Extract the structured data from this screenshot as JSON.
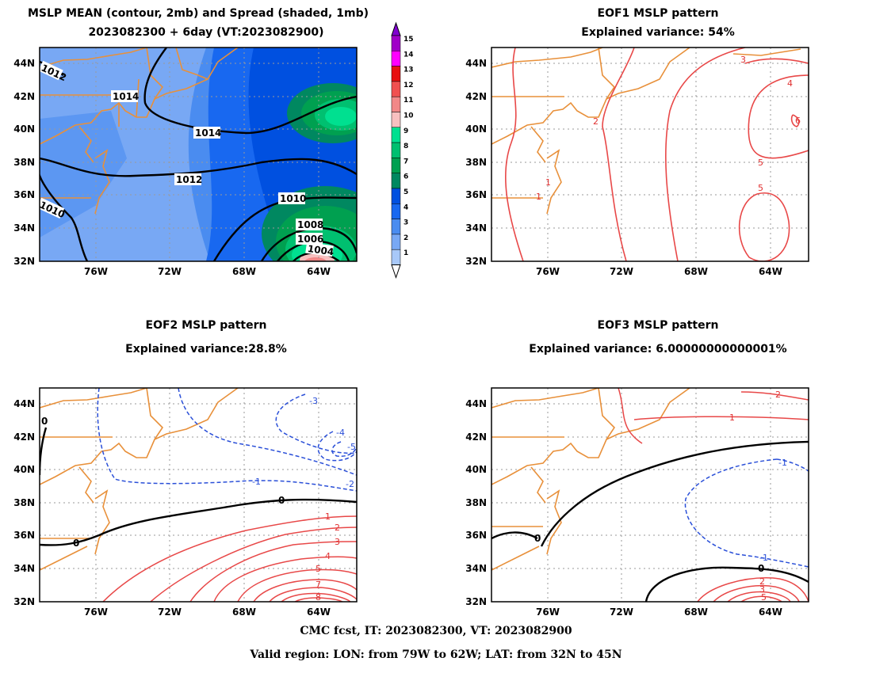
{
  "panels": {
    "p1": {
      "title_line1": "MSLP MEAN (contour, 2mb) and Spread (shaded, 1mb)",
      "title_line2": "2023082300 + 6day (VT:2023082900)"
    },
    "p2": {
      "title_line1": "EOF1 MSLP pattern",
      "title_line2": "Explained variance: 54%"
    },
    "p3": {
      "title_line1": "EOF2 MSLP pattern",
      "title_line2": "Explained variance:28.8%"
    },
    "p4": {
      "title_line1": "EOF3 MSLP pattern",
      "title_line2": "Explained variance: 6.00000000000001%"
    }
  },
  "axes": {
    "lat_ticks": [
      "44N",
      "42N",
      "40N",
      "38N",
      "36N",
      "34N",
      "32N"
    ],
    "lon_ticks": [
      "76W",
      "72W",
      "68W",
      "64W"
    ]
  },
  "colorbar": {
    "levels": [
      "15",
      "14",
      "13",
      "12",
      "11",
      "10",
      "9",
      "8",
      "7",
      "6",
      "5",
      "4",
      "3",
      "2",
      "1"
    ],
    "colors": [
      "#a000c8",
      "#ff00ff",
      "#e81010",
      "#f05050",
      "#f28888",
      "#f8c0c0",
      "#00e090",
      "#00c070",
      "#00a050",
      "#008860",
      "#0050e0",
      "#1868f0",
      "#4a8cf0",
      "#78a8f4",
      "#a8c8f8"
    ]
  },
  "contour_labels": {
    "p1": [
      "1012",
      "1014",
      "1014",
      "1012",
      "1010",
      "1010",
      "1008",
      "1006",
      "1004"
    ],
    "p2": [
      "3",
      "4",
      "5",
      "5",
      "6",
      "2",
      "1",
      "1"
    ],
    "p3": [
      "0",
      "0",
      "0",
      "-1",
      "-2",
      "-3",
      "-4",
      "-5",
      "1",
      "2",
      "3",
      "4",
      "5",
      "7",
      "8"
    ],
    "p4": [
      "0",
      "0",
      "-1",
      "-1",
      "1",
      "2",
      "2",
      "3",
      "5"
    ]
  },
  "footer": {
    "line1": "CMC fcst, IT: 2023082300, VT: 2023082900",
    "line2": "Valid region: LON: from 79W to 62W; LAT: from 32N to 45N"
  },
  "colors": {
    "coast": "#e8903a",
    "pos_contour": "#e84848",
    "neg_contour": "#2a4fd8",
    "zero_contour": "#000000",
    "grid": "#9a9a9a"
  }
}
